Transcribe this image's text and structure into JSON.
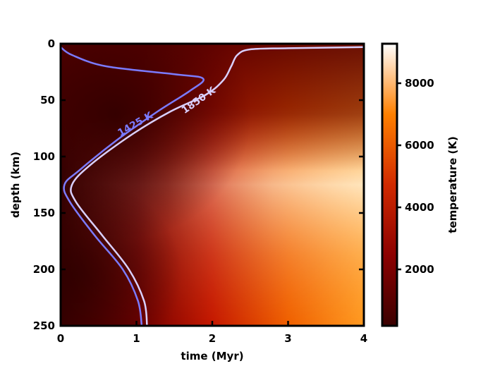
{
  "chart_data": {
    "type": "heatmap",
    "title": "",
    "xlabel": "time (Myr)",
    "ylabel": "depth (km)",
    "xlim": [
      0,
      4
    ],
    "ylim": [
      250,
      0
    ],
    "x_ticks": [
      "0",
      "1",
      "2",
      "3",
      "4"
    ],
    "y_ticks": [
      "0",
      "50",
      "100",
      "150",
      "200",
      "250"
    ],
    "colorbar": {
      "label": "temperature (K)",
      "range": [
        200,
        9300
      ],
      "ticks": [
        "2000",
        "4000",
        "6000",
        "8000"
      ],
      "colormap": "gist_heat",
      "colors": [
        "#3a0000",
        "#8c0000",
        "#d02a00",
        "#ff8000",
        "#ffffff"
      ]
    },
    "contours": [
      {
        "name": "1425 K",
        "color": "#7b7bff",
        "points": [
          [
            0.0,
            3
          ],
          [
            0.15,
            10
          ],
          [
            0.6,
            20
          ],
          [
            1.5,
            27
          ],
          [
            1.88,
            31
          ],
          [
            1.7,
            42
          ],
          [
            1.28,
            60
          ],
          [
            0.75,
            85
          ],
          [
            0.25,
            112
          ],
          [
            0.05,
            125
          ],
          [
            0.12,
            140
          ],
          [
            0.45,
            170
          ],
          [
            0.82,
            200
          ],
          [
            1.02,
            228
          ],
          [
            1.07,
            250
          ]
        ]
      },
      {
        "name": "1850 K",
        "color": "#d9d0ff",
        "points": [
          [
            4.0,
            3
          ],
          [
            3.0,
            4
          ],
          [
            2.5,
            5
          ],
          [
            2.33,
            10
          ],
          [
            2.25,
            20
          ],
          [
            2.15,
            32
          ],
          [
            1.92,
            45
          ],
          [
            1.45,
            60
          ],
          [
            0.95,
            80
          ],
          [
            0.4,
            107
          ],
          [
            0.15,
            125
          ],
          [
            0.2,
            140
          ],
          [
            0.55,
            170
          ],
          [
            0.9,
            200
          ],
          [
            1.1,
            228
          ],
          [
            1.14,
            250
          ]
        ]
      }
    ]
  }
}
